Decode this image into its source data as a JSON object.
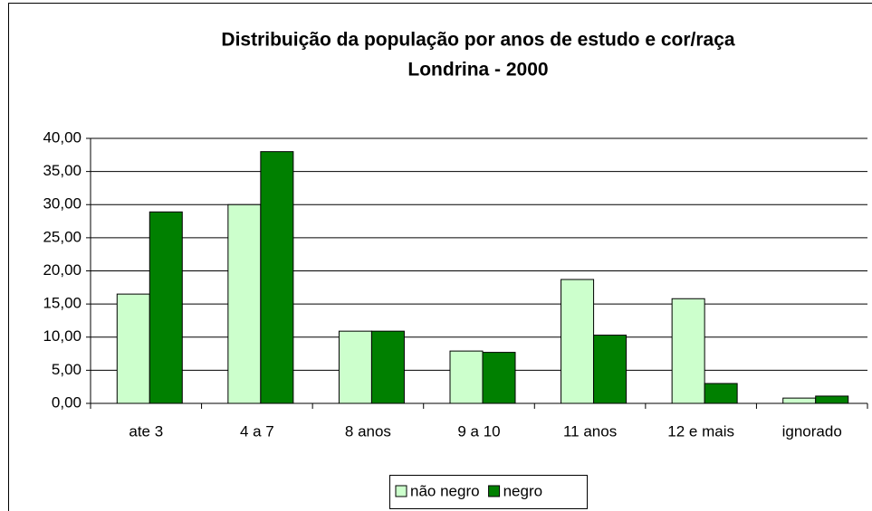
{
  "chart_data": {
    "type": "bar",
    "title": "Distribuição da população por anos de estudo e cor/raça",
    "subtitle": "Londrina - 2000",
    "categories": [
      "ate 3",
      "4 a 7",
      "8 anos",
      "9 a 10",
      "11 anos",
      "12 e mais",
      "ignorado"
    ],
    "series": [
      {
        "name": "não negro",
        "color": "#ccffcc",
        "values": [
          16.5,
          30.0,
          10.9,
          7.9,
          18.7,
          15.8,
          0.8
        ]
      },
      {
        "name": "negro",
        "color": "#008000",
        "values": [
          28.9,
          38.0,
          10.9,
          7.7,
          10.3,
          3.0,
          1.1
        ]
      }
    ],
    "ylim": [
      0,
      40
    ],
    "yticks": [
      {
        "value": 0,
        "label": "0,00"
      },
      {
        "value": 5,
        "label": "5,00"
      },
      {
        "value": 10,
        "label": "10,00"
      },
      {
        "value": 15,
        "label": "15,00"
      },
      {
        "value": 20,
        "label": "20,00"
      },
      {
        "value": 25,
        "label": "25,00"
      },
      {
        "value": 30,
        "label": "30,00"
      },
      {
        "value": 35,
        "label": "35,00"
      },
      {
        "value": 40,
        "label": "40,00"
      }
    ],
    "grid": true,
    "legend": "bottom"
  }
}
